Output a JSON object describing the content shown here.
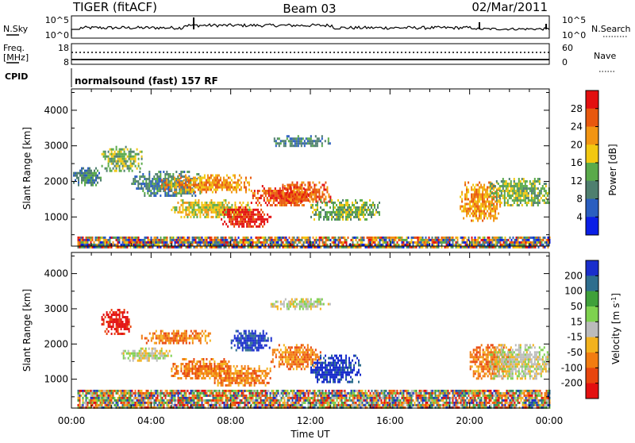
{
  "header": {
    "station": "TIGER (fitACF)",
    "beam": "Beam 03",
    "date": "02/Mar/2011"
  },
  "strip_panels": {
    "nsky_label": "N.Sky",
    "nsky_ticks": [
      "10^5",
      "10^0"
    ],
    "nsearch_label": "N.Search",
    "nsearch_ticks": [
      "10^5",
      "10^0"
    ],
    "freq_label_lines": [
      "Freq.",
      "[MHz]"
    ],
    "freq_ticks": [
      "18",
      "8"
    ],
    "nave_label": "Nave",
    "nave_ticks": [
      "60",
      "0"
    ],
    "cpid_label": "CPID",
    "cpid_text": "normalsound (fast) 157 RF"
  },
  "chart_data": [
    {
      "type": "heatmap",
      "quantity": "Power",
      "ylabel": "Slant Range [km]",
      "xlabel": "Time UT",
      "x_ticks": [
        "00:00",
        "04:00",
        "08:00",
        "12:00",
        "16:00",
        "20:00",
        "00:00"
      ],
      "xlim_hours": [
        0,
        24
      ],
      "y_ticks": [
        1000,
        2000,
        3000,
        4000
      ],
      "ylim": [
        180,
        4600
      ],
      "colorbar": {
        "label": "Power [dB]",
        "ticks": [
          "28",
          "24",
          "20",
          "16",
          "12",
          "8",
          "4"
        ],
        "colors": [
          "#0a1ee6",
          "#2a5ec0",
          "#4f7f6f",
          "#5aaa4a",
          "#f2c811",
          "#f29512",
          "#e8580e",
          "#e31010"
        ]
      },
      "regions": [
        {
          "t": [
            0.3,
            24
          ],
          "r": [
            180,
            450
          ],
          "level": 2,
          "note": "ground scatter band"
        },
        {
          "t": [
            0,
            1.5
          ],
          "r": [
            1900,
            2400
          ],
          "level": 2
        },
        {
          "t": [
            1.5,
            3.5
          ],
          "r": [
            2300,
            3000
          ],
          "level": 3
        },
        {
          "t": [
            3.0,
            6.5
          ],
          "r": [
            1600,
            2300
          ],
          "level": 2
        },
        {
          "t": [
            4.5,
            9.0
          ],
          "r": [
            1700,
            2200
          ],
          "level": 5
        },
        {
          "t": [
            5.0,
            9.0
          ],
          "r": [
            1000,
            1500
          ],
          "level": 4
        },
        {
          "t": [
            7.5,
            10.0
          ],
          "r": [
            700,
            1300
          ],
          "level": 7
        },
        {
          "t": [
            9.0,
            12.0
          ],
          "r": [
            1300,
            1900
          ],
          "level": 6
        },
        {
          "t": [
            10.5,
            13.0
          ],
          "r": [
            1400,
            2000
          ],
          "level": 6
        },
        {
          "t": [
            12.0,
            15.5
          ],
          "r": [
            900,
            1500
          ],
          "level": 3
        },
        {
          "t": [
            10.0,
            13.0
          ],
          "r": [
            3000,
            3300
          ],
          "level": 2
        },
        {
          "t": [
            19.5,
            21.5
          ],
          "r": [
            900,
            2000
          ],
          "level": 5
        },
        {
          "t": [
            21.0,
            24.0
          ],
          "r": [
            1300,
            2100
          ],
          "level": 3
        }
      ]
    },
    {
      "type": "heatmap",
      "quantity": "Velocity",
      "ylabel": "Slant Range [km]",
      "xlabel": "Time UT",
      "x_ticks": [
        "00:00",
        "04:00",
        "08:00",
        "12:00",
        "16:00",
        "20:00",
        "00:00"
      ],
      "xlim_hours": [
        0,
        24
      ],
      "y_ticks": [
        1000,
        2000,
        3000,
        4000
      ],
      "ylim": [
        180,
        4600
      ],
      "colorbar": {
        "label": "Velocity [m s^-1]",
        "ticks": [
          "200",
          "100",
          "50",
          "15",
          "-15",
          "-50",
          "-100",
          "-200"
        ],
        "colors": [
          "#1a2ecc",
          "#2e6e8e",
          "#3fa03a",
          "#7ed14e",
          "#bbbbbb",
          "#f3b21d",
          "#f27c10",
          "#e8460e",
          "#e31010"
        ]
      },
      "regions": [
        {
          "t": [
            0.3,
            24
          ],
          "r": [
            180,
            700
          ],
          "level": 3,
          "note": "ground scatter band"
        },
        {
          "t": [
            1.5,
            3.0
          ],
          "r": [
            2300,
            3000
          ],
          "level": 8
        },
        {
          "t": [
            2.5,
            5.0
          ],
          "r": [
            1500,
            1900
          ],
          "level": 4
        },
        {
          "t": [
            3.5,
            7.0
          ],
          "r": [
            2000,
            2400
          ],
          "level": 6
        },
        {
          "t": [
            5.0,
            8.0
          ],
          "r": [
            1000,
            1600
          ],
          "level": 6
        },
        {
          "t": [
            7.0,
            10.0
          ],
          "r": [
            800,
            1400
          ],
          "level": 6
        },
        {
          "t": [
            8.0,
            10.0
          ],
          "r": [
            1800,
            2400
          ],
          "level": 0
        },
        {
          "t": [
            10.0,
            12.5
          ],
          "r": [
            1300,
            2000
          ],
          "level": 6
        },
        {
          "t": [
            12.0,
            14.5
          ],
          "r": [
            900,
            1700
          ],
          "level": 0
        },
        {
          "t": [
            10.0,
            13.0
          ],
          "r": [
            3000,
            3300
          ],
          "level": 4
        },
        {
          "t": [
            20.0,
            22.0
          ],
          "r": [
            1000,
            2000
          ],
          "level": 6
        },
        {
          "t": [
            21.0,
            24.0
          ],
          "r": [
            1000,
            2000
          ],
          "level": 4
        }
      ]
    }
  ]
}
